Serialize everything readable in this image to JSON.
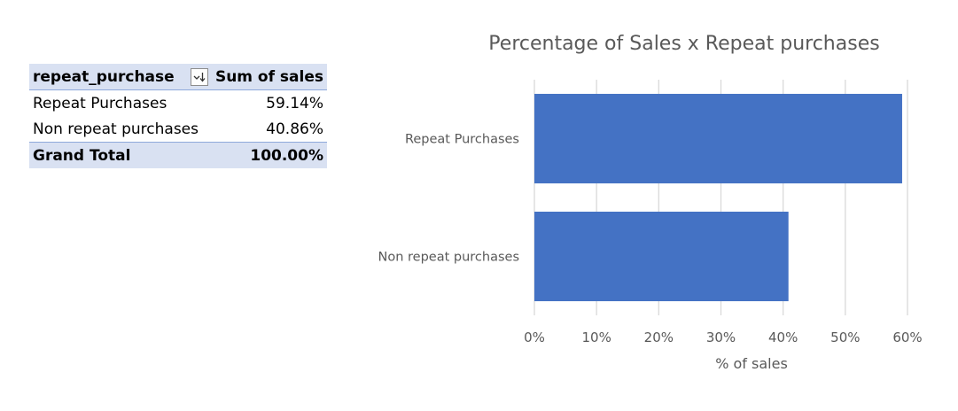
{
  "pivot_table": {
    "header": {
      "row_label": "repeat_purchase",
      "value_label": "Sum of sales",
      "filter_icon": "sort-descending-filter-icon"
    },
    "rows": [
      {
        "label": "Repeat Purchases",
        "value": "59.14%"
      },
      {
        "label": "Non repeat purchases",
        "value": "40.86%"
      }
    ],
    "total": {
      "label": "Grand Total",
      "value": "100.00%"
    }
  },
  "chart_data": {
    "type": "bar",
    "orientation": "horizontal",
    "title": "Percentage of Sales x Repeat purchases",
    "categories": [
      "Repeat Purchases",
      "Non repeat purchases"
    ],
    "values": [
      59.14,
      40.86
    ],
    "xlabel": "% of sales",
    "ylabel": "",
    "xlim": [
      0,
      60
    ],
    "x_ticks": [
      0,
      10,
      20,
      30,
      40,
      50,
      60
    ],
    "x_tick_labels": [
      "0%",
      "10%",
      "20%",
      "30%",
      "40%",
      "50%",
      "60%"
    ],
    "grid": "vertical",
    "legend": "none",
    "bar_color": "#4472c4",
    "grid_color": "#d9d9d9"
  }
}
